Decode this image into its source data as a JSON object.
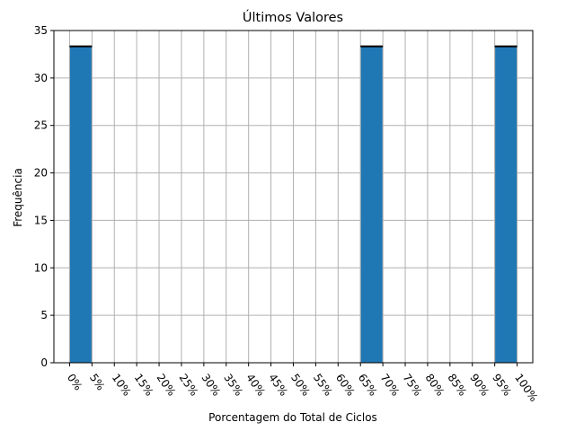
{
  "chart_data": {
    "type": "bar",
    "title": "Últimos Valores",
    "xlabel": "Porcentagem do Total de Ciclos",
    "ylabel": "Frequência",
    "categories": [
      "0%",
      "5%",
      "10%",
      "15%",
      "20%",
      "25%",
      "30%",
      "35%",
      "40%",
      "45%",
      "50%",
      "55%",
      "60%",
      "65%",
      "70%",
      "75%",
      "80%",
      "85%",
      "90%",
      "95%",
      "100%"
    ],
    "bars": [
      {
        "x_start": 0,
        "x_end": 5,
        "value": 33.33
      },
      {
        "x_start": 65,
        "x_end": 70,
        "value": 33.33
      },
      {
        "x_start": 95,
        "x_end": 100,
        "value": 33.33
      }
    ],
    "ylim": [
      0,
      35
    ],
    "yticks": [
      0,
      5,
      10,
      15,
      20,
      25,
      30,
      35
    ],
    "xlim": [
      -3.5,
      103.5
    ],
    "grid": true,
    "bar_color": "#1f77b4",
    "bar_top_color": "#000000",
    "grid_color": "#b0b0b0"
  }
}
